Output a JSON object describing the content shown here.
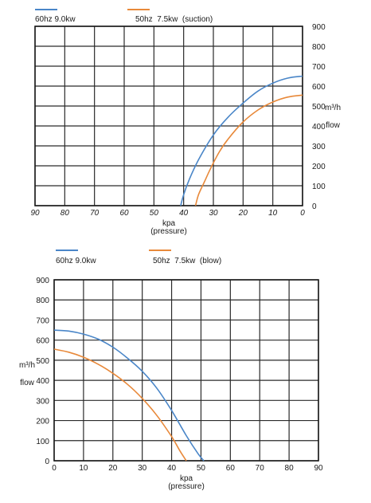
{
  "chart_data": [
    {
      "type": "line",
      "legend_position": "top-left",
      "grid": true,
      "x_axis": {
        "label": "kpa",
        "sublabel": "(pressure)",
        "reversed": true,
        "range": [
          0,
          90
        ],
        "ticks": [
          "0",
          "10",
          "20",
          "30",
          "40",
          "50",
          "60",
          "70",
          "80",
          "90"
        ]
      },
      "y_axis": {
        "label": "m³/h",
        "sublabel": "flow",
        "position": "right",
        "range": [
          0,
          900
        ],
        "ticks": [
          "0",
          "100",
          "200",
          "300",
          "400",
          "500",
          "600",
          "700",
          "800",
          "900"
        ]
      },
      "series": [
        {
          "name": "60hz 9.0kw",
          "color": "#4a86c8",
          "x": [
            0,
            5,
            10,
            15,
            20,
            25,
            30,
            35,
            38,
            40,
            41
          ],
          "y": [
            650,
            640,
            615,
            575,
            515,
            445,
            355,
            230,
            135,
            55,
            0
          ]
        },
        {
          "name": "50hz  7.5kw  (suction)",
          "color": "#e8893a",
          "x": [
            0,
            5,
            10,
            15,
            20,
            25,
            28,
            31,
            33,
            35,
            36
          ],
          "y": [
            555,
            545,
            520,
            480,
            420,
            335,
            270,
            185,
            120,
            55,
            0
          ]
        }
      ]
    },
    {
      "type": "line",
      "legend_position": "top-left",
      "grid": true,
      "x_axis": {
        "label": "kpa",
        "sublabel": "(pressure)",
        "reversed": false,
        "range": [
          0,
          90
        ],
        "ticks": [
          "0",
          "10",
          "20",
          "30",
          "40",
          "50",
          "60",
          "70",
          "80",
          "90"
        ]
      },
      "y_axis": {
        "label": "m³/h",
        "sublabel": "flow",
        "position": "left",
        "range": [
          0,
          900
        ],
        "ticks": [
          "0",
          "100",
          "200",
          "300",
          "400",
          "500",
          "600",
          "700",
          "800",
          "900"
        ]
      },
      "series": [
        {
          "name": "60hz 9.0kw",
          "color": "#4a86c8",
          "x": [
            0,
            5,
            10,
            15,
            20,
            25,
            30,
            35,
            40,
            45,
            49,
            51
          ],
          "y": [
            650,
            645,
            630,
            605,
            565,
            510,
            445,
            360,
            250,
            125,
            35,
            0
          ]
        },
        {
          "name": "50hz  7.5kw  (blow)",
          "color": "#e8893a",
          "x": [
            0,
            5,
            10,
            15,
            20,
            25,
            30,
            35,
            40,
            43,
            45
          ],
          "y": [
            555,
            540,
            515,
            480,
            435,
            380,
            310,
            225,
            120,
            45,
            0
          ]
        }
      ]
    }
  ]
}
